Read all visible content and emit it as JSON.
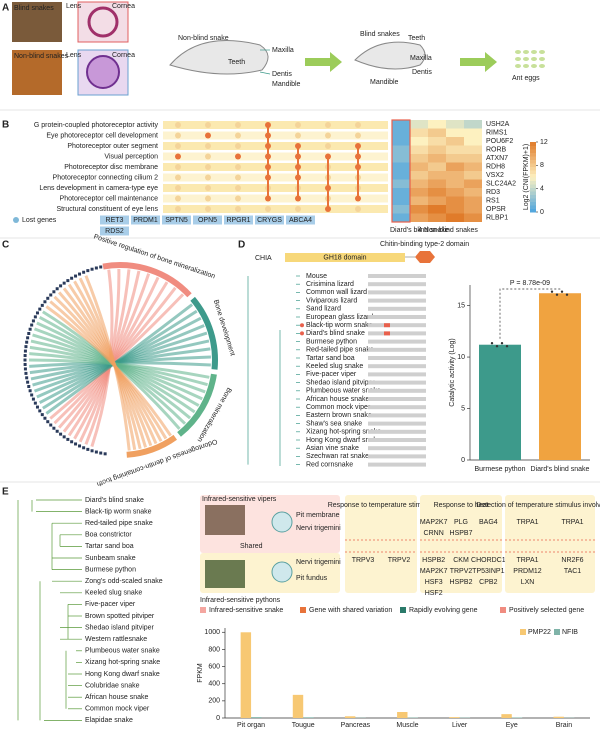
{
  "panel_labels": [
    "A",
    "B",
    "C",
    "D",
    "E"
  ],
  "panel_a": {
    "top_photo": "Blind snakes",
    "top_lens": "Lens",
    "top_cornea": "Cornea",
    "bottom_photo": "Non-blind snakes",
    "bottom_lens": "Lens",
    "bottom_cornea": "Cornea",
    "skull1": {
      "title": "Non-blind snake",
      "maxilla": "Maxilla",
      "teeth": "Teeth",
      "dentis": "Dentis",
      "mandible": "Mandible"
    },
    "skull2": {
      "title": "Blind snakes",
      "teeth": "Teeth",
      "maxilla": "Maxilla",
      "dentis": "Dentis",
      "mandible": "Mandible"
    },
    "food": "Ant eggs"
  },
  "panel_b": {
    "go_terms": [
      "G protein-coupled photoreceptor activity",
      "Eye photoreceptor cell development",
      "Photoreceptor outer segment",
      "Visual perception",
      "Photoreceptor disc membrane",
      "Photoreceptor connecting cilium 2",
      "Lens development in camera-type eye",
      "Photoreceptor cell maintenance",
      "Structural constituent of eye lens"
    ],
    "highlight_term_color": "#e8733a",
    "lost_genes_legend": "Lost genes",
    "lost_genes": [
      "RET3",
      "PRDM1",
      "SPTN5",
      "OPN5",
      "RPGR1",
      "CRYGS",
      "ABCA4",
      "RDS2"
    ],
    "dot_matrix": [
      [
        0,
        0,
        0,
        1,
        0,
        0,
        0
      ],
      [
        0,
        1,
        0,
        1,
        0,
        0,
        0
      ],
      [
        0,
        0,
        0,
        1,
        1,
        0,
        1
      ],
      [
        1,
        0,
        1,
        1,
        1,
        1,
        1
      ],
      [
        0,
        0,
        0,
        1,
        1,
        0,
        1
      ],
      [
        0,
        0,
        0,
        1,
        1,
        0,
        0
      ],
      [
        0,
        0,
        0,
        0,
        0,
        1,
        0
      ],
      [
        0,
        0,
        0,
        1,
        1,
        0,
        1
      ],
      [
        0,
        0,
        0,
        0,
        0,
        1,
        0
      ]
    ],
    "heatmap": {
      "genes": [
        "USH2A",
        "RIMS1",
        "POU6F2",
        "RORB",
        "ATXN7",
        "RDH8",
        "VSX2",
        "SLC24A2",
        "RD3",
        "RS1",
        "OPSR",
        "RLBP1"
      ],
      "values": [
        [
          1,
          5,
          6,
          5,
          4
        ],
        [
          1,
          7,
          8,
          6,
          6
        ],
        [
          1,
          6,
          7,
          8,
          6
        ],
        [
          2,
          7,
          8,
          7,
          7
        ],
        [
          2,
          8,
          9,
          8,
          8
        ],
        [
          1,
          9,
          8,
          10,
          9
        ],
        [
          1,
          8,
          9,
          9,
          8
        ],
        [
          2,
          9,
          10,
          9,
          10
        ],
        [
          1,
          10,
          11,
          10,
          9
        ],
        [
          1,
          9,
          10,
          11,
          10
        ],
        [
          2,
          11,
          12,
          11,
          10
        ],
        [
          1,
          10,
          11,
          12,
          11
        ]
      ],
      "column_groups": [
        "Diard's blind snake",
        "4 Non-blind snakes"
      ],
      "colorbar_label": "Log2 (CNI(FPKM)+1)",
      "clim": [
        0,
        12
      ],
      "cticks": [
        0,
        4,
        8,
        12
      ]
    }
  },
  "panel_c": {
    "sectors": [
      {
        "name": "Positive regulation of bone mineralization",
        "color": "#f08c80"
      },
      {
        "name": "Bone development",
        "color": "#3d9a8b"
      },
      {
        "name": "Bone mineralization",
        "color": "#5fb38a"
      },
      {
        "name": "Odontogenesis of dentin-containing tooth",
        "color": "#f0a060"
      }
    ]
  },
  "panel_d": {
    "protein": "CHIA",
    "domain1": "GH18 domain",
    "domain2": "Chitin-binding type-2 domain",
    "species": [
      "Mouse",
      "Crisimina lizard",
      "Common wall lizard",
      "Viviparous lizard",
      "Sand lizard",
      "European glass lizard",
      "Black-tip worm snake",
      "Diard's blind snake",
      "Burmese python",
      "Red-tailed pipe snake",
      "Tartar sand boa",
      "Keeled slug snake",
      "Five-pacer viper",
      "Shedao island pitviper",
      "Plumbeous water snake",
      "African house snake",
      "Common mock viper",
      "Eastern brown snake",
      "Shaw's sea snake",
      "Xizang hot-spring snake",
      "Hong Kong dwarf snake",
      "Asian vine snake",
      "Szechwan rat snake",
      "Red cornsnake"
    ]
  },
  "chart_data": [
    {
      "type": "bar",
      "categories": [
        "Burmese python",
        "Diard's blind snake"
      ],
      "values": [
        11.2,
        16.2
      ],
      "colors": [
        "#3d9a8b",
        "#f0a340"
      ],
      "ylabel": "Catalytic activity (Log)",
      "ylim": [
        0,
        17
      ],
      "yticks": [
        0,
        5,
        10,
        15
      ],
      "annotation": "P = 8.78e-09"
    },
    {
      "type": "bar",
      "categories": [
        "Pit organ",
        "Tougue",
        "Pancreas",
        "Muscle",
        "Liver",
        "Eye",
        "Brain"
      ],
      "series": [
        {
          "name": "PMP22",
          "color": "#f7c873",
          "values": [
            1000,
            270,
            20,
            70,
            10,
            45,
            15
          ]
        },
        {
          "name": "NFIB",
          "color": "#7fb3a8",
          "values": [
            10,
            8,
            3,
            5,
            4,
            6,
            3
          ]
        }
      ],
      "ylabel": "FPKM",
      "ylim": [
        0,
        1050
      ],
      "yticks": [
        0,
        200,
        400,
        600,
        800,
        1000
      ],
      "legend": "upper right"
    }
  ],
  "panel_e": {
    "species": [
      {
        "name": "Diard's blind snake",
        "color": "#222"
      },
      {
        "name": "Black-tip worm snake",
        "color": "#222"
      },
      {
        "name": "Red-tailed pipe snake",
        "color": "#222"
      },
      {
        "name": "Boa constrictor",
        "color": "#222"
      },
      {
        "name": "Tartar sand boa",
        "color": "#222"
      },
      {
        "name": "Sunbeam snake",
        "color": "#222"
      },
      {
        "name": "Burmese python",
        "color": "#e8604c"
      },
      {
        "name": "Zong's odd-scaled snake",
        "color": "#222"
      },
      {
        "name": "Keeled slug snake",
        "color": "#222"
      },
      {
        "name": "Five-pacer viper",
        "color": "#e8604c"
      },
      {
        "name": "Brown spotted pitviper",
        "color": "#e8604c"
      },
      {
        "name": "Shedao island pitviper",
        "color": "#e8604c"
      },
      {
        "name": "Western rattlesnake",
        "color": "#e8604c"
      },
      {
        "name": "Plumbeous water snake",
        "color": "#222"
      },
      {
        "name": "Xizang hot-spring snake",
        "color": "#222"
      },
      {
        "name": "Hong Kong dwarf snake",
        "color": "#222"
      },
      {
        "name": "Colubridae snake",
        "color": "#222"
      },
      {
        "name": "African house snake",
        "color": "#222"
      },
      {
        "name": "Common mock viper",
        "color": "#222"
      },
      {
        "name": "Elapidae snake",
        "color": "#222"
      }
    ],
    "vipers": "Infrared-sensitive vipers",
    "pit_membrane": "Pit membrane",
    "nervi1": "Nervi trigemini",
    "shared": "Shared",
    "nervi2": "Nervi trigemini",
    "pit_fundus": "Pit fundus",
    "pythons": "Infrared-sensitive pythons",
    "columns": [
      {
        "header": "Response to temperature stimulus",
        "top": [],
        "bottom": [
          {
            "name": "TRPV3",
            "color": "#2a7a6a"
          },
          {
            "name": "TRPV2",
            "color": "#e8604c"
          }
        ]
      },
      {
        "header": "Response to heat",
        "top": [
          {
            "name": "MAP2K7",
            "color": "#2a7a6a"
          },
          {
            "name": "PLG",
            "color": "#2a7a6a"
          },
          {
            "name": "BAG4",
            "color": "#2a7a6a"
          },
          {
            "name": "CRNN",
            "color": "#e8733a"
          },
          {
            "name": "HSPB7",
            "color": "#e8604c"
          }
        ],
        "bottom": [
          {
            "name": "HSPB2",
            "color": "#2a7a6a"
          },
          {
            "name": "CKM",
            "color": "#2a7a6a"
          },
          {
            "name": "CHORDC1",
            "color": "#2a7a6a"
          },
          {
            "name": "MAP2K7",
            "color": "#2a7a6a"
          },
          {
            "name": "TRPV2",
            "color": "#e8604c"
          },
          {
            "name": "TP53INP1",
            "color": "#e8604c"
          },
          {
            "name": "HSF3",
            "color": "#e8733a"
          },
          {
            "name": "HSPB2",
            "color": "#e8733a"
          },
          {
            "name": "CPB2",
            "color": "#e8733a"
          },
          {
            "name": "HSF2",
            "color": "#e8733a"
          }
        ]
      },
      {
        "header": "Detection of temperature stimulus involved pain",
        "top": [
          {
            "name": "TRPA1",
            "color": "#e8604c"
          },
          {
            "name": "TRPA1",
            "color": "#e8604c"
          }
        ],
        "bottom": [
          {
            "name": "TRPA1",
            "color": "#222"
          },
          {
            "name": "NR2F6",
            "color": "#e8604c"
          },
          {
            "name": "PRDM12",
            "color": "#e8604c"
          },
          {
            "name": "TAC1",
            "color": "#222"
          },
          {
            "name": "LXN",
            "color": "#e8733a"
          }
        ]
      }
    ],
    "legend": [
      {
        "name": "Infrared-sensitive snake",
        "color": "#f4a6a0"
      },
      {
        "name": "Gene with shared variation",
        "color": "#e8733a"
      },
      {
        "name": "Rapidly evolving gene",
        "color": "#2a7a6a"
      },
      {
        "name": "Positively selected gene",
        "color": "#f08c80"
      }
    ]
  }
}
